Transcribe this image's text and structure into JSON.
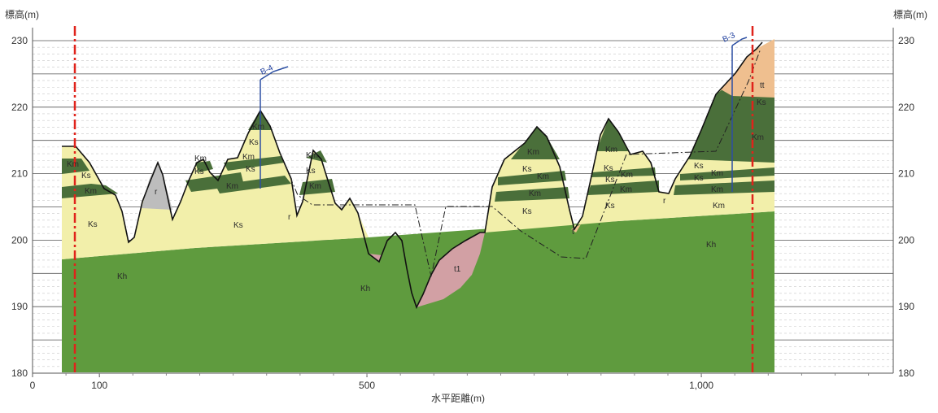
{
  "axes": {
    "y_title_left": "標高(m)",
    "y_title_right": "標高(m)",
    "x_title": "水平距離(m)",
    "y_ticks": [
      "180",
      "190",
      "200",
      "210",
      "220",
      "230"
    ],
    "x_ticks": [
      "0",
      "100",
      "500",
      "1,000"
    ]
  },
  "boreholes": [
    {
      "id": "b4",
      "label": "B-4"
    },
    {
      "id": "b3",
      "label": "B-3"
    }
  ],
  "layer_labels": {
    "km_left": "Km",
    "ks_left_upper": "Ks",
    "km_left_band": "Km",
    "ks_left_lower": "Ks",
    "kh_left": "Kh",
    "r_pocket": "r",
    "km_b4_left": "Km",
    "ks_b4_left": "Ks",
    "km_b4_mid": "Km",
    "km_b4_peak": "Km",
    "ks_b4_peak": "Ks",
    "km_b4_band": "Km",
    "ks_b4_band": "Ks",
    "ks_center_lower": "Ks",
    "km_hill": "Km",
    "ks_hill": "Ks",
    "km_hill_low": "Km",
    "r_small_1": "r",
    "kh_center": "Kh",
    "t1_deposit": "t1",
    "km_right_peak": "Km",
    "ks_right_1": "Ks",
    "km_right_1": "Km",
    "km_right_2": "Km",
    "ks_right_2": "Ks",
    "t_small": "t",
    "km_valley_right": "Km",
    "km_ridge": "Km",
    "ks_ridge_1": "Ks",
    "km_ridge_1": "Km",
    "ks_ridge_2": "Ks",
    "km_ridge_2": "Km",
    "ks_ridge_3": "Ks",
    "r_small_2": "r",
    "km_b3": "Km",
    "ks_b3": "Ks",
    "ks_b3_band": "Ks",
    "km_b3_band": "Km",
    "ks_b3_lower": "Ks",
    "kh_right": "Kh",
    "tt_top": "tt"
  },
  "colors": {
    "kh": "#5f9b3e",
    "km": "#4a6f3a",
    "ks": "#f2efaa",
    "r": "#bdbdbd",
    "t1": "#d2a0a4",
    "tt": "#efbf8f",
    "section_line": "#e0231b",
    "borehole": "#2c4fa3"
  }
}
